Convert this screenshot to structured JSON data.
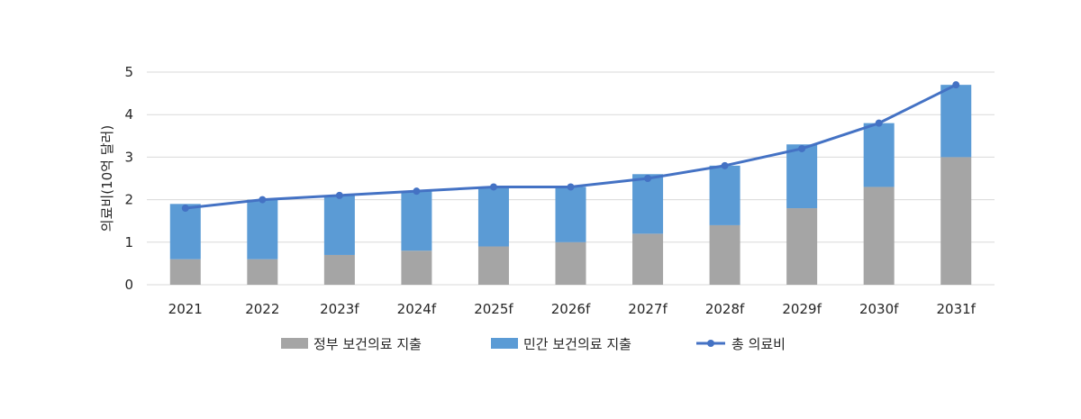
{
  "chart_data": {
    "type": "bar",
    "subtype": "stacked-bar-with-line",
    "title": "",
    "xlabel": "",
    "ylabel": "의료비(10억 달러)",
    "ylim": [
      0,
      5
    ],
    "yticks": [
      0,
      1,
      2,
      3,
      4,
      5
    ],
    "grid": true,
    "legend_position": "bottom",
    "categories": [
      "2021",
      "2022",
      "2023f",
      "2024f",
      "2025f",
      "2026f",
      "2027f",
      "2028f",
      "2029f",
      "2030f",
      "2031f"
    ],
    "series": [
      {
        "name": "정부 보건의료 지출",
        "kind": "bar",
        "color": "#a5a5a5",
        "values": [
          0.6,
          0.6,
          0.7,
          0.8,
          0.9,
          1.0,
          1.2,
          1.4,
          1.8,
          2.3,
          3.0
        ]
      },
      {
        "name": "민간 보건의료 지출",
        "kind": "bar",
        "color": "#5b9bd5",
        "values": [
          1.3,
          1.4,
          1.4,
          1.4,
          1.4,
          1.3,
          1.4,
          1.4,
          1.5,
          1.5,
          1.7
        ]
      },
      {
        "name": "총 의료비",
        "kind": "line",
        "color": "#4472c4",
        "values": [
          1.8,
          2.0,
          2.1,
          2.2,
          2.3,
          2.3,
          2.5,
          2.8,
          3.2,
          3.8,
          4.7
        ]
      }
    ]
  }
}
